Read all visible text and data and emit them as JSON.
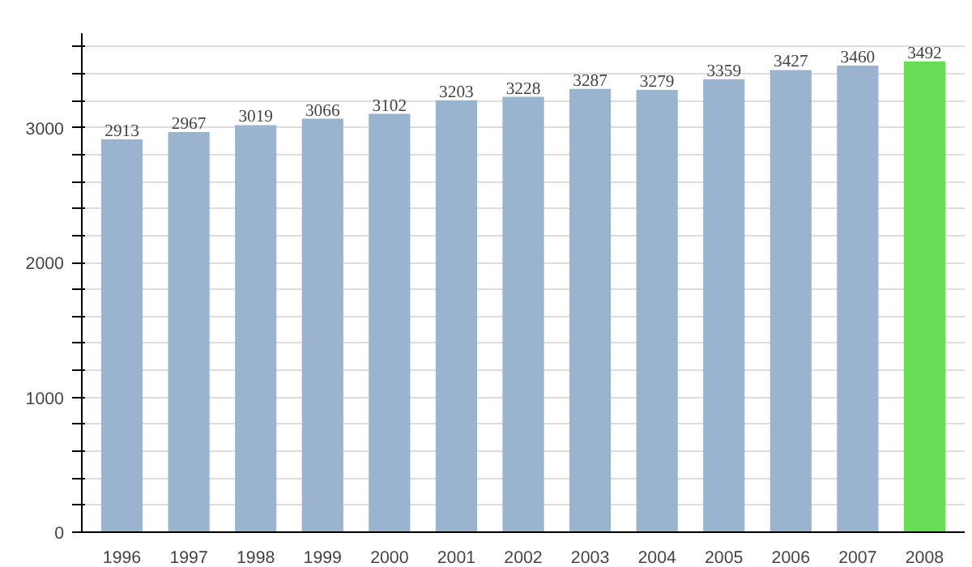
{
  "chart_data": {
    "type": "bar",
    "categories": [
      "1996",
      "1997",
      "1998",
      "1999",
      "2000",
      "2001",
      "2002",
      "2003",
      "2004",
      "2005",
      "2006",
      "2007",
      "2008"
    ],
    "values": [
      2913,
      2967,
      3019,
      3066,
      3102,
      3203,
      3228,
      3287,
      3279,
      3359,
      3427,
      3460,
      3492
    ],
    "colors": [
      "#9ab3cf",
      "#9ab3cf",
      "#9ab3cf",
      "#9ab3cf",
      "#9ab3cf",
      "#9ab3cf",
      "#9ab3cf",
      "#9ab3cf",
      "#9ab3cf",
      "#9ab3cf",
      "#9ab3cf",
      "#9ab3cf",
      "#66dd55"
    ],
    "ylim": [
      0,
      3700
    ],
    "yticks": [
      0,
      {
        "value": 200,
        "label": null
      },
      {
        "value": 400,
        "label": null
      },
      {
        "value": 600,
        "label": null
      },
      {
        "value": 800,
        "label": null
      },
      1000,
      {
        "value": 1200,
        "label": null
      },
      {
        "value": 1400,
        "label": null
      },
      {
        "value": 1600,
        "label": null
      },
      {
        "value": 1800,
        "label": null
      },
      2000,
      {
        "value": 2200,
        "label": null
      },
      {
        "value": 2400,
        "label": null
      },
      {
        "value": 2600,
        "label": null
      },
      {
        "value": 2800,
        "label": null
      },
      3000,
      {
        "value": 3200,
        "label": null
      },
      {
        "value": 3400,
        "label": null
      },
      {
        "value": 3600,
        "label": null
      }
    ],
    "grid": "y",
    "data_labels": true
  }
}
